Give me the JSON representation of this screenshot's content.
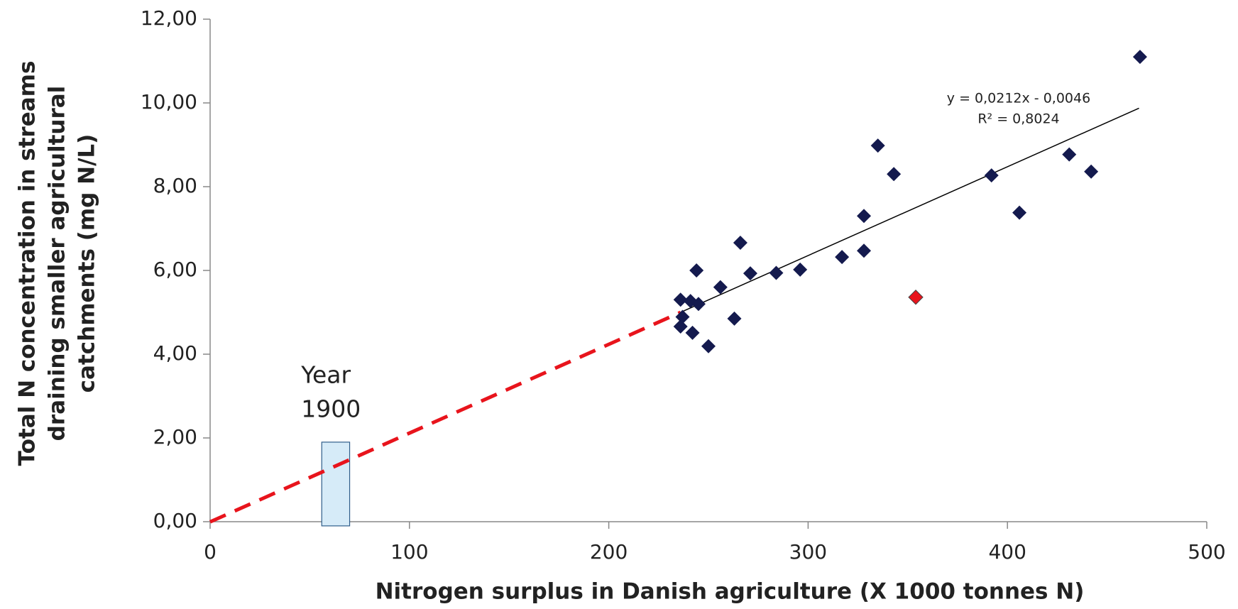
{
  "chart_data": {
    "type": "scatter",
    "xlabel": "Nitrogen surplus in Danish agriculture (X 1000 tonnes N)",
    "ylabel": [
      "Total N concentration in streams",
      "draining smaller agricultural",
      "catchments (mg N/L)"
    ],
    "xlim": [
      0,
      500
    ],
    "xticks": [
      0,
      100,
      200,
      300,
      400,
      500
    ],
    "ylim": [
      0,
      12
    ],
    "yticks": [
      {
        "value": 0,
        "label": "0,00"
      },
      {
        "value": 2,
        "label": "2,00"
      },
      {
        "value": 4,
        "label": "4,00"
      },
      {
        "value": 6,
        "label": "6,00"
      },
      {
        "value": 8,
        "label": "8,00"
      },
      {
        "value": 10,
        "label": "10,00"
      },
      {
        "value": 12,
        "label": "12,00"
      }
    ],
    "series": [
      {
        "color": "#141a4e",
        "x": [
          466.5,
          335,
          343,
          392,
          431,
          442,
          406,
          328,
          328,
          317,
          296,
          284,
          271,
          266,
          256,
          244,
          245,
          241,
          236,
          237,
          236,
          242,
          250,
          263
        ],
        "values": [
          11.1,
          8.98,
          8.3,
          8.27,
          8.77,
          8.36,
          7.38,
          7.3,
          6.47,
          6.32,
          6.02,
          5.94,
          5.93,
          6.66,
          5.6,
          6.0,
          5.2,
          5.27,
          5.3,
          4.89,
          4.66,
          4.51,
          4.19,
          4.85
        ]
      },
      {
        "color": "#e8141c",
        "x": [
          354
        ],
        "values": [
          5.36
        ]
      }
    ],
    "trendline": {
      "slope": 0.0212,
      "intercept": -0.0046,
      "x_range": [
        236,
        466
      ],
      "color": "#000000",
      "label": [
        "y = 0,0212x - 0,0046",
        "R² = 0,8024"
      ]
    },
    "extrapolation": {
      "x_range": [
        0,
        236
      ],
      "color": "#e8141c"
    },
    "highlight": {
      "xlim": [
        56,
        70
      ],
      "ylim": [
        -0.1,
        1.9
      ],
      "label": [
        "Year",
        "1900"
      ]
    }
  }
}
